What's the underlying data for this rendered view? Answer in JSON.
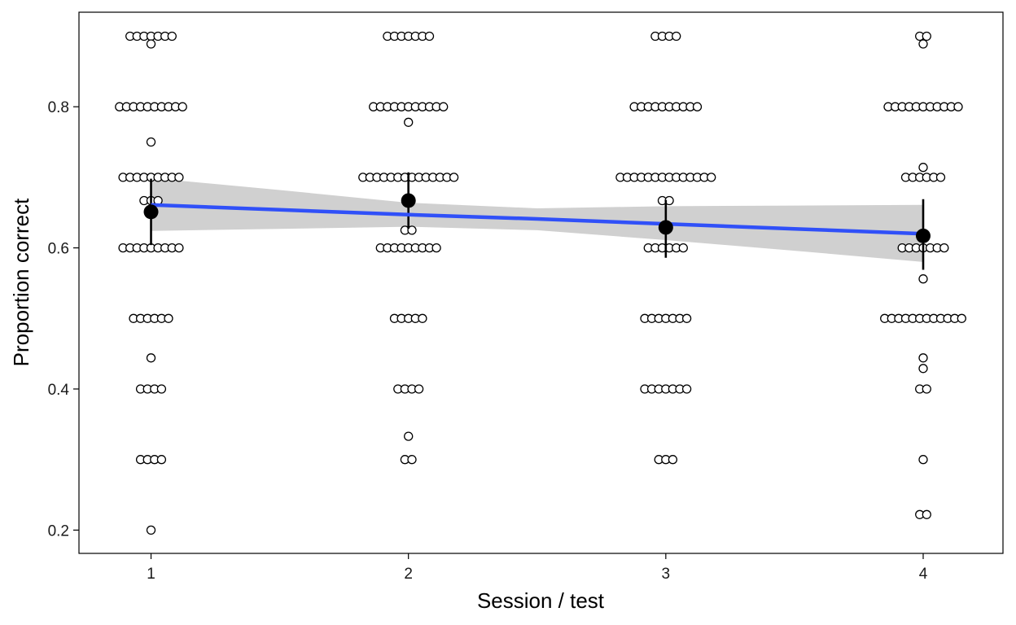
{
  "chart_data": {
    "type": "scatter",
    "title": "",
    "xlabel": "Session / test",
    "ylabel": "Proportion correct",
    "x_ticks": [
      1,
      2,
      3,
      4
    ],
    "y_ticks": [
      0.2,
      0.4,
      0.6,
      0.8
    ],
    "y_tick_labels": [
      "0.2",
      "0.4",
      "0.6",
      "0.8"
    ],
    "xlim": [
      0.72,
      4.31
    ],
    "ylim": [
      0.167,
      0.934
    ],
    "grid": false,
    "legend": "none",
    "colors": {
      "fit_line": "#3050f8",
      "ribbon": "#d0d0d0",
      "mean_point": "#000000",
      "raw_point_fill": "#ffffff",
      "raw_point_stroke": "#000000"
    },
    "raw_points": [
      {
        "session": 1,
        "groups": [
          {
            "value": 0.9,
            "count": 7
          },
          {
            "value": 0.889,
            "count": 1
          },
          {
            "value": 0.8,
            "count": 10
          },
          {
            "value": 0.75,
            "count": 1
          },
          {
            "value": 0.7,
            "count": 9
          },
          {
            "value": 0.667,
            "count": 3
          },
          {
            "value": 0.6,
            "count": 9
          },
          {
            "value": 0.5,
            "count": 6
          },
          {
            "value": 0.444,
            "count": 1
          },
          {
            "value": 0.4,
            "count": 4
          },
          {
            "value": 0.3,
            "count": 4
          },
          {
            "value": 0.2,
            "count": 1
          }
        ]
      },
      {
        "session": 2,
        "groups": [
          {
            "value": 0.9,
            "count": 7
          },
          {
            "value": 0.8,
            "count": 11
          },
          {
            "value": 0.778,
            "count": 1
          },
          {
            "value": 0.7,
            "count": 14
          },
          {
            "value": 0.625,
            "count": 2
          },
          {
            "value": 0.6,
            "count": 9
          },
          {
            "value": 0.5,
            "count": 5
          },
          {
            "value": 0.4,
            "count": 4
          },
          {
            "value": 0.333,
            "count": 1
          },
          {
            "value": 0.3,
            "count": 2
          }
        ]
      },
      {
        "session": 3,
        "groups": [
          {
            "value": 0.9,
            "count": 4
          },
          {
            "value": 0.8,
            "count": 10
          },
          {
            "value": 0.7,
            "count": 14
          },
          {
            "value": 0.667,
            "count": 2
          },
          {
            "value": 0.6,
            "count": 6
          },
          {
            "value": 0.5,
            "count": 7
          },
          {
            "value": 0.4,
            "count": 7
          },
          {
            "value": 0.3,
            "count": 3
          }
        ]
      },
      {
        "session": 4,
        "groups": [
          {
            "value": 0.9,
            "count": 2
          },
          {
            "value": 0.889,
            "count": 1
          },
          {
            "value": 0.8,
            "count": 11
          },
          {
            "value": 0.714,
            "count": 1
          },
          {
            "value": 0.7,
            "count": 6
          },
          {
            "value": 0.6,
            "count": 7
          },
          {
            "value": 0.556,
            "count": 1
          },
          {
            "value": 0.5,
            "count": 12
          },
          {
            "value": 0.444,
            "count": 1
          },
          {
            "value": 0.429,
            "count": 1
          },
          {
            "value": 0.4,
            "count": 2
          },
          {
            "value": 0.3,
            "count": 1
          },
          {
            "value": 0.222,
            "count": 2
          }
        ]
      }
    ],
    "means": [
      {
        "session": 1,
        "mean": 0.651,
        "lower": 0.604,
        "upper": 0.698
      },
      {
        "session": 2,
        "mean": 0.667,
        "lower": 0.627,
        "upper": 0.707
      },
      {
        "session": 3,
        "mean": 0.629,
        "lower": 0.586,
        "upper": 0.668
      },
      {
        "session": 4,
        "mean": 0.617,
        "lower": 0.569,
        "upper": 0.669
      }
    ],
    "fit": {
      "x": [
        1,
        1.5,
        2,
        2.5,
        3,
        3.5,
        4
      ],
      "y": [
        0.661,
        0.654,
        0.647,
        0.641,
        0.634,
        0.627,
        0.62
      ],
      "lower": [
        0.624,
        0.627,
        0.63,
        0.625,
        0.611,
        0.596,
        0.58
      ],
      "upper": [
        0.699,
        0.682,
        0.664,
        0.656,
        0.659,
        0.66,
        0.661
      ]
    }
  }
}
